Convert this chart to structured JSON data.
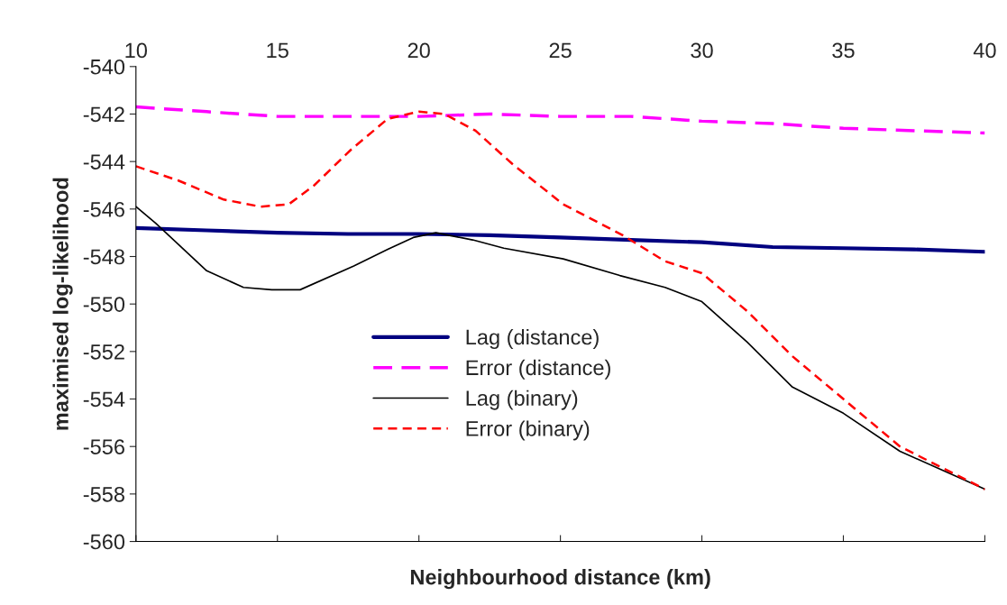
{
  "chart_data": {
    "type": "line",
    "xlabel": "Neighbourhood distance (km)",
    "ylabel": "maximised log-likelihood",
    "xlim": [
      10,
      40
    ],
    "xticks": [
      10,
      15,
      20,
      25,
      30,
      35,
      40
    ],
    "ylim": [
      -560,
      -540
    ],
    "yticks": [
      -560,
      -558,
      -556,
      -554,
      -552,
      -550,
      -548,
      -546,
      -544,
      -542,
      -540
    ],
    "grid": false,
    "legend": "center",
    "marker": "none",
    "series": [
      {
        "name": "Lag (distance)",
        "color": "#000080",
        "line_style": "solid",
        "x": [
          10,
          12.5,
          15,
          17.5,
          20,
          22.5,
          25,
          27.5,
          30,
          32.5,
          35,
          37.5,
          40
        ],
        "values": [
          -546.8,
          -546.9,
          -547.0,
          -547.05,
          -547.05,
          -547.1,
          -547.2,
          -547.3,
          -547.4,
          -547.6,
          -547.65,
          -547.7,
          -547.8
        ]
      },
      {
        "name": "Error (distance)",
        "color": "#ff00ff",
        "line_style": "dashed",
        "x": [
          10,
          12.5,
          15,
          17.5,
          20,
          22.5,
          25,
          27.5,
          30,
          32.5,
          35,
          37.5,
          40
        ],
        "values": [
          -541.7,
          -541.9,
          -542.1,
          -542.1,
          -542.1,
          -542.0,
          -542.1,
          -542.1,
          -542.3,
          -542.4,
          -542.6,
          -542.7,
          -542.8
        ]
      },
      {
        "name": "Lag (binary)",
        "color": "#000000",
        "line_style": "solid",
        "x": [
          10,
          10.7,
          12.5,
          13.8,
          14.8,
          15.8,
          17.7,
          18.9,
          19.8,
          20.6,
          21.9,
          23.0,
          25.1,
          27.1,
          28.7,
          30,
          31.6,
          33.2,
          35,
          37,
          40
        ],
        "values": [
          -545.9,
          -546.6,
          -548.6,
          -549.3,
          -549.4,
          -549.4,
          -548.4,
          -547.7,
          -547.2,
          -547.0,
          -547.3,
          -547.65,
          -548.1,
          -548.8,
          -549.3,
          -549.9,
          -551.6,
          -553.5,
          -554.6,
          -556.2,
          -557.8
        ]
      },
      {
        "name": "Error (binary)",
        "color": "#ff0000",
        "line_style": "dashed",
        "x": [
          10,
          11.5,
          13.1,
          14.4,
          15.4,
          16.3,
          17.6,
          18.9,
          20,
          20.9,
          22,
          23.3,
          25.1,
          27.2,
          28.7,
          30,
          31.6,
          33.2,
          35,
          37,
          40
        ],
        "values": [
          -544.2,
          -544.8,
          -545.6,
          -545.9,
          -545.8,
          -545.0,
          -543.5,
          -542.2,
          -541.9,
          -542.0,
          -542.7,
          -544.1,
          -545.8,
          -547.1,
          -548.2,
          -548.7,
          -550.3,
          -552.2,
          -554.0,
          -556.0,
          -557.8
        ]
      }
    ]
  }
}
